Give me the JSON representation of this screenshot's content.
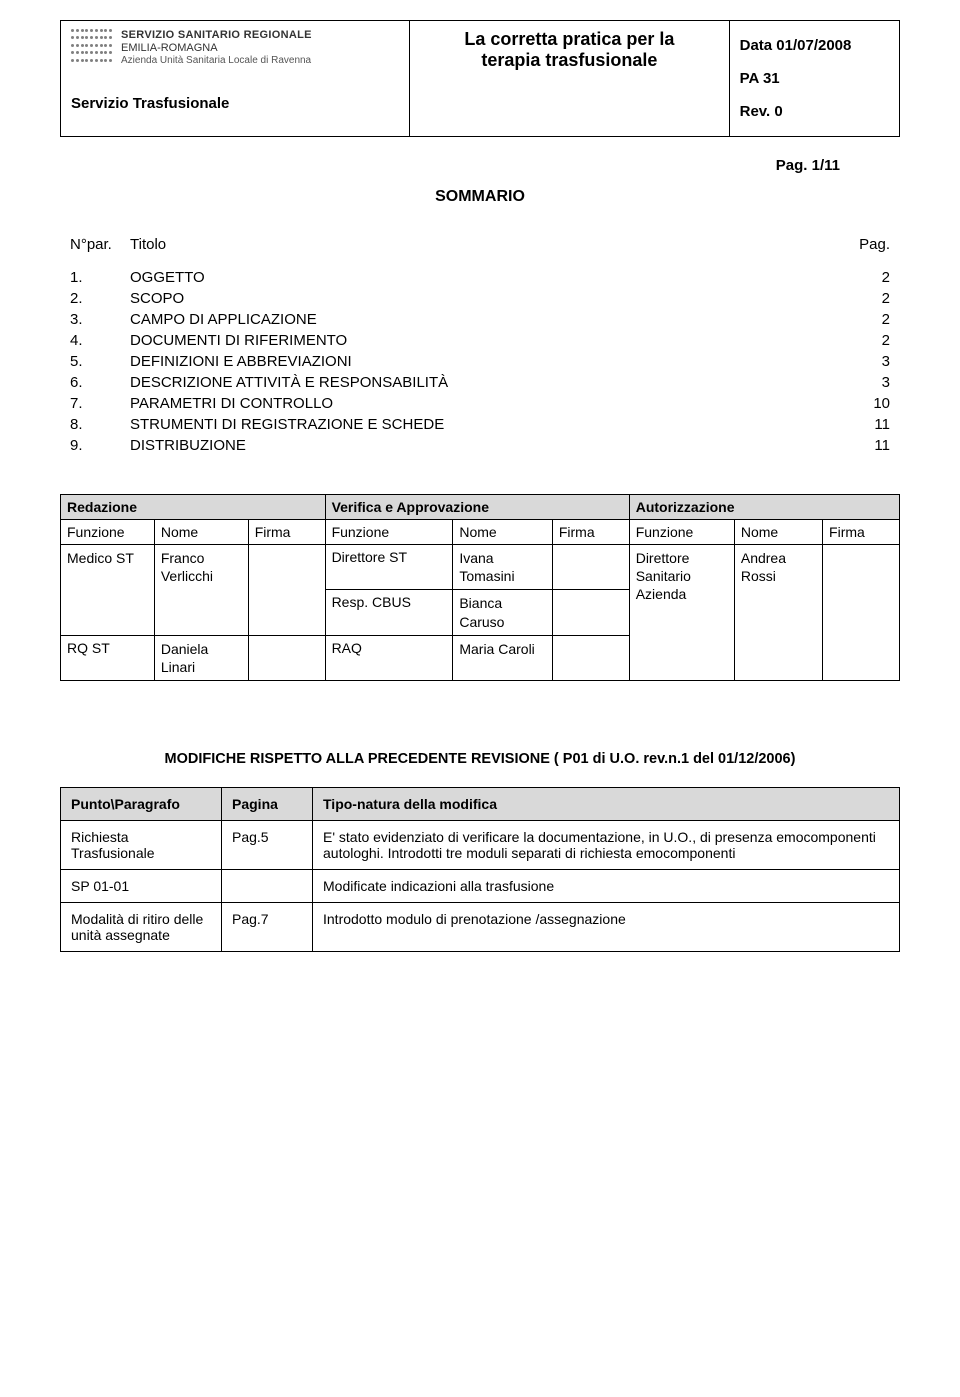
{
  "header": {
    "logo_line1": "SERVIZIO SANITARIO REGIONALE",
    "logo_line2": "EMILIA-ROMAGNA",
    "logo_line3": "Azienda Unità Sanitaria Locale di Ravenna",
    "service_label": "Servizio Trasfusionale",
    "doc_title_line1": "La corretta pratica per la",
    "doc_title_line2": "terapia trasfusionale",
    "date_label": "Data 01/07/2008",
    "pa_label": "PA  31",
    "rev_label": "Rev. 0",
    "page_label": "Pag. 1/11"
  },
  "sommario_title": "SOMMARIO",
  "toc": {
    "npar_label": "N°par.",
    "titolo_label": "Titolo",
    "pag_label": "Pag.",
    "rows": [
      {
        "n": "1.",
        "t": "OGGETTO",
        "p": "2"
      },
      {
        "n": "2.",
        "t": "SCOPO",
        "p": "2"
      },
      {
        "n": "3.",
        "t": "CAMPO DI APPLICAZIONE",
        "p": "2"
      },
      {
        "n": "4.",
        "t": "DOCUMENTI DI RIFERIMENTO",
        "p": "2"
      },
      {
        "n": "5.",
        "t": "DEFINIZIONI E ABBREVIAZIONI",
        "p": "3"
      },
      {
        "n": "6.",
        "t": "DESCRIZIONE ATTIVITÀ E RESPONSABILITÀ",
        "p": "3"
      },
      {
        "n": "7.",
        "t": "PARAMETRI DI CONTROLLO",
        "p": "10"
      },
      {
        "n": "8.",
        "t": "STRUMENTI DI REGISTRAZIONE E SCHEDE",
        "p": "11"
      },
      {
        "n": "9.",
        "t": "DISTRIBUZIONE",
        "p": "11"
      }
    ]
  },
  "approval": {
    "groups": [
      "Redazione",
      "Verifica e Approvazione",
      "Autorizzazione"
    ],
    "cols": [
      "Funzione",
      "Nome",
      "Firma"
    ],
    "rows": [
      {
        "g1_f": "Medico ST",
        "g1_n": "Franco Verlicchi",
        "g2_f": "Direttore ST",
        "g2_n": "Ivana Tomasini",
        "g3_f": "Direttore Sanitario Azienda",
        "g3_n": "Andrea Rossi"
      },
      {
        "g2_f": "Resp. CBUS",
        "g2_n": "Bianca Caruso"
      },
      {
        "g1_f": "RQ ST",
        "g1_n": "Daniela Linari",
        "g2_f": "RAQ",
        "g2_n": "Maria Caroli"
      }
    ]
  },
  "mods": {
    "title": "MODIFICHE RISPETTO ALLA PRECEDENTE REVISIONE ( P01 di U.O. rev.n.1 del 01/12/2006)",
    "headers": [
      "Punto\\Paragrafo",
      "Pagina",
      "Tipo-natura della modifica"
    ],
    "rows": [
      {
        "c1": "Richiesta Trasfusionale",
        "c2": "Pag.5",
        "c3": "E' stato evidenziato di verificare la documentazione, in U.O., di presenza emocomponenti autologhi. Introdotti tre moduli separati di richiesta emocomponenti"
      },
      {
        "c1": "SP 01-01",
        "c2": "",
        "c3": "Modificate indicazioni alla trasfusione"
      },
      {
        "c1": "Modalità di ritiro delle unità assegnate",
        "c2": "Pag.7",
        "c3": "Introdotto modulo di prenotazione /assegnazione"
      }
    ]
  }
}
